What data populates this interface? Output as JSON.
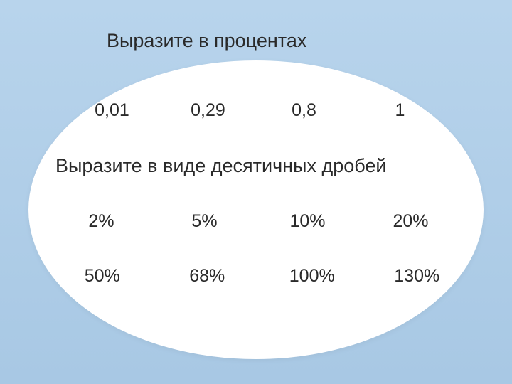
{
  "title1": "Выразите в процентах",
  "title2": "Выразите в виде десятичных дробей",
  "row1": [
    "0,01",
    "0,29",
    "0,8",
    "1"
  ],
  "row2": [
    "2%",
    "5%",
    "10%",
    "20%"
  ],
  "row3": [
    "50%",
    "68%",
    "100%",
    "130%"
  ],
  "colors": {
    "background_top": "#b8d4ec",
    "background_bottom": "#a8c8e4",
    "oval": "#ffffff",
    "text": "#2a2a2a"
  },
  "fontsize": {
    "title": 27,
    "cell": 25
  }
}
